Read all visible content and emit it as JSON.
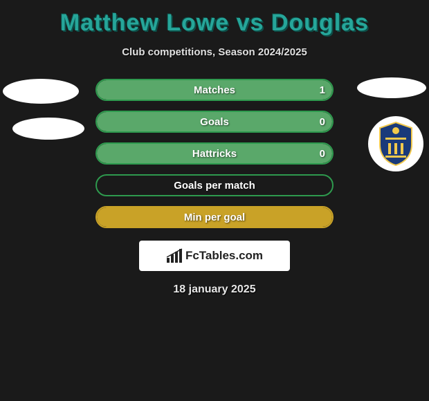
{
  "title": "Matthew Lowe vs Douglas",
  "subtitle": "Club competitions, Season 2024/2025",
  "date": "18 january 2025",
  "logo_text": "FcTables.com",
  "colors": {
    "border_green": "#2e9a4e",
    "fill_green": "#5aa86a",
    "border_yellow": "#c9a227",
    "fill_yellow": "#c9a227",
    "crest_blue": "#1a3a7a",
    "crest_gold": "#f2c94c"
  },
  "bars": [
    {
      "label": "Matches",
      "right_value": "1",
      "fill_right_pct": 100,
      "variant": "green"
    },
    {
      "label": "Goals",
      "right_value": "0",
      "fill_right_pct": 100,
      "variant": "green"
    },
    {
      "label": "Hattricks",
      "right_value": "0",
      "fill_right_pct": 100,
      "variant": "green"
    },
    {
      "label": "Goals per match",
      "right_value": "",
      "fill_right_pct": 0,
      "variant": "green"
    },
    {
      "label": "Min per goal",
      "right_value": "",
      "fill_right_pct": 100,
      "variant": "yellow"
    }
  ]
}
